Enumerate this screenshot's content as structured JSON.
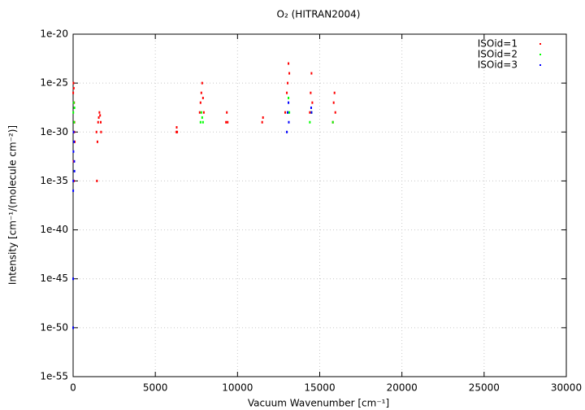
{
  "chart_data": {
    "type": "scatter",
    "title": "O₂ (HITRAN2004)",
    "x_label": "Vacuum Wavenumber [cm⁻¹]",
    "y_label": "Intensity [cm⁻¹/(molecule cm⁻²)]",
    "xlim": [
      0,
      30000
    ],
    "xticks": [
      0,
      5000,
      10000,
      15000,
      20000,
      25000,
      30000
    ],
    "ylim": [
      1e-55,
      1e-20
    ],
    "yticks": [
      1e-55,
      1e-50,
      1e-45,
      1e-40,
      1e-35,
      1e-30,
      1e-25,
      1e-20
    ],
    "log_y": true,
    "grid": true,
    "legend": "top-right",
    "series": [
      {
        "name": "ISOid=1",
        "color": "#ff0000",
        "x": [
          5,
          20,
          40,
          60,
          80,
          100,
          30,
          50,
          70,
          1420,
          1450,
          1480,
          1520,
          1560,
          1600,
          1640,
          1680,
          1700,
          6280,
          6300,
          6330,
          7700,
          7750,
          7800,
          7850,
          7900,
          7950,
          9300,
          9350,
          9400,
          11500,
          11550,
          12900,
          13000,
          13050,
          13100,
          13150,
          14400,
          14450,
          14500,
          14550,
          15800,
          15850,
          15900,
          15950
        ],
        "values": [
          1e-26,
          1e-25,
          3e-26,
          1e-27,
          1e-29,
          1e-31,
          1e-33,
          1e-35,
          1e-30,
          1e-30,
          1e-35,
          1e-31,
          1e-29,
          3e-29,
          1e-28,
          5e-29,
          1e-29,
          1e-30,
          1e-30,
          3e-30,
          1e-30,
          1e-28,
          1e-27,
          1e-26,
          1e-25,
          3e-27,
          1e-28,
          1e-29,
          1e-28,
          1e-29,
          1e-29,
          3e-29,
          1e-28,
          1e-26,
          1e-25,
          1e-23,
          1e-24,
          1e-28,
          1e-26,
          1e-24,
          1e-27,
          1e-29,
          1e-27,
          1e-26,
          1e-28
        ]
      },
      {
        "name": "ISOid=2",
        "color": "#00ff00",
        "x": [
          10,
          40,
          60,
          80,
          7750,
          7800,
          7850,
          7900,
          13050,
          13100,
          13150,
          14400,
          14500,
          15800
        ],
        "values": [
          1e-28,
          1e-27,
          1e-29,
          3e-28,
          1e-29,
          1e-28,
          3e-29,
          1e-29,
          1e-28,
          3e-27,
          1e-28,
          1e-29,
          1e-28,
          1e-29
        ]
      },
      {
        "name": "ISOid=3",
        "color": "#0000ff",
        "x": [
          10,
          20,
          30,
          50,
          70,
          80,
          5,
          0,
          0,
          13000,
          13050,
          13100,
          13120,
          14500,
          14480
        ],
        "values": [
          1e-35,
          1e-32,
          1e-30,
          1e-31,
          1e-33,
          1e-34,
          1e-36,
          1e-45,
          1e-50,
          1e-30,
          1e-28,
          1e-27,
          1e-29,
          1e-28,
          3e-28
        ]
      }
    ]
  }
}
